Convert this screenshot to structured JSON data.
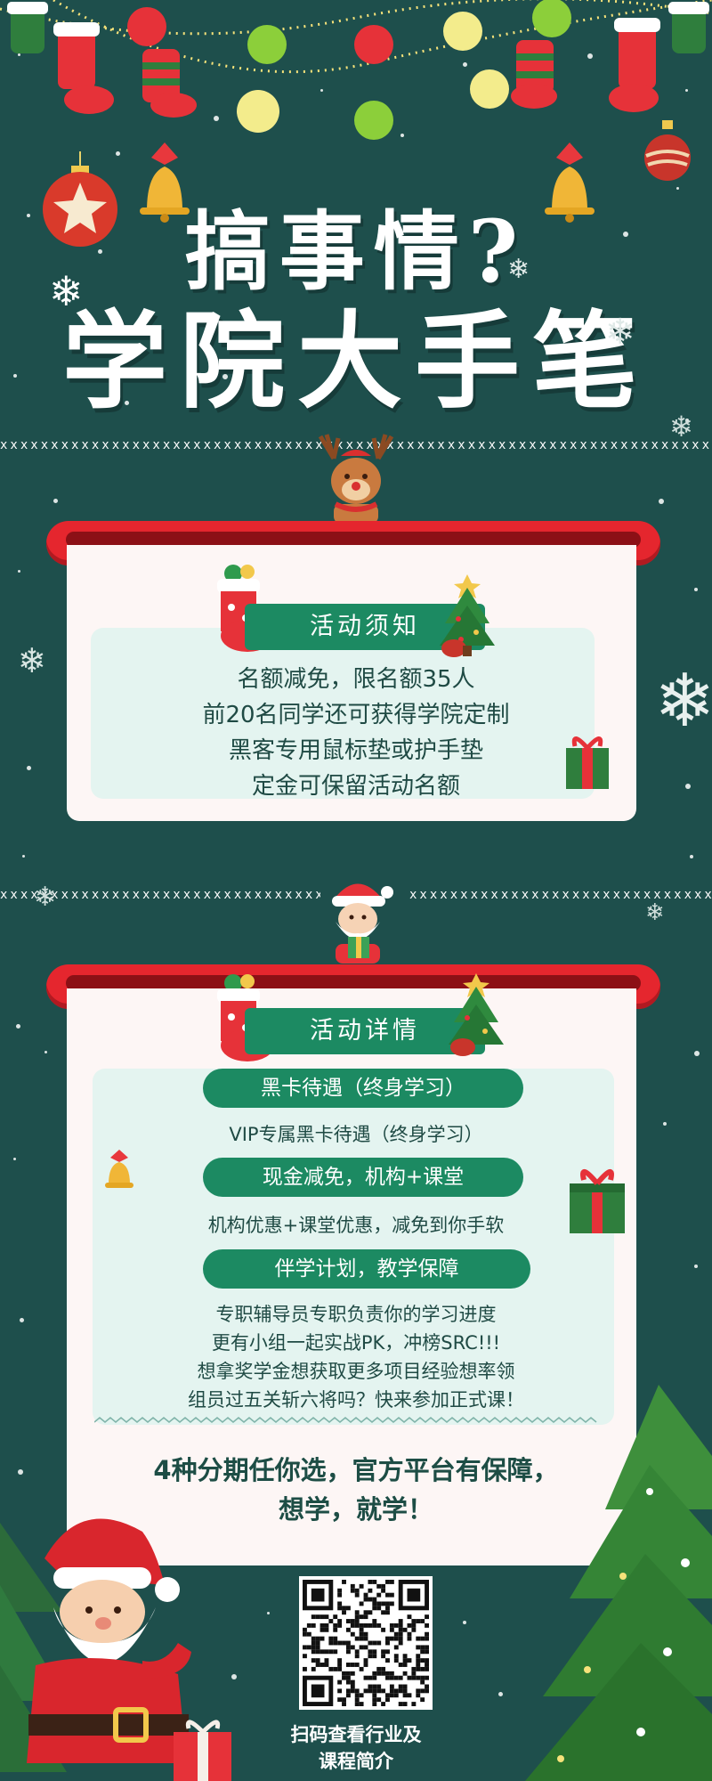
{
  "title": {
    "line1": "搞事情?",
    "line2": "学院大手笔"
  },
  "notice": {
    "tag": "活动须知",
    "lines": [
      "名额减免，限名额35人",
      "前20名同学还可获得学院定制",
      "黑客专用鼠标垫或护手垫",
      "定金可保留活动名额"
    ]
  },
  "details": {
    "tag": "活动详情",
    "sections": [
      {
        "heading": "黑卡待遇（终身学习）",
        "lines": [
          "VIP专属黑卡待遇（终身学习）"
        ]
      },
      {
        "heading": "现金减免，机构+课堂",
        "lines": [
          "机构优惠+课堂优惠，减免到你手软"
        ]
      },
      {
        "heading": "伴学计划，教学保障",
        "lines": [
          "专职辅导员专职负责你的学习进度",
          "更有小组一起实战PK，冲榜SRC!!!",
          "想拿奖学金想获取更多项目经验想率领",
          "组员过五关斩六将吗？快来参加正式课！"
        ]
      }
    ],
    "closing": [
      "4种分期任你选，官方平台有保障，",
      "想学，就学！"
    ]
  },
  "qr": {
    "caption": [
      "扫码查看行业及",
      "课程简介"
    ]
  },
  "icons": [
    "ornament-ball-icon",
    "bell-icon",
    "stocking-icon",
    "snowflake-icon",
    "reindeer-icon",
    "santa-icon",
    "gift-icon",
    "christmas-tree-icon",
    "qr-code-icon"
  ],
  "colors": {
    "background": "#1e4f4c",
    "accent_red": "#e5262e",
    "accent_green": "#1c8a62",
    "card": "#fdf6f5",
    "card_mint": "#e4f4f0",
    "text_dark": "#1f4a44"
  }
}
